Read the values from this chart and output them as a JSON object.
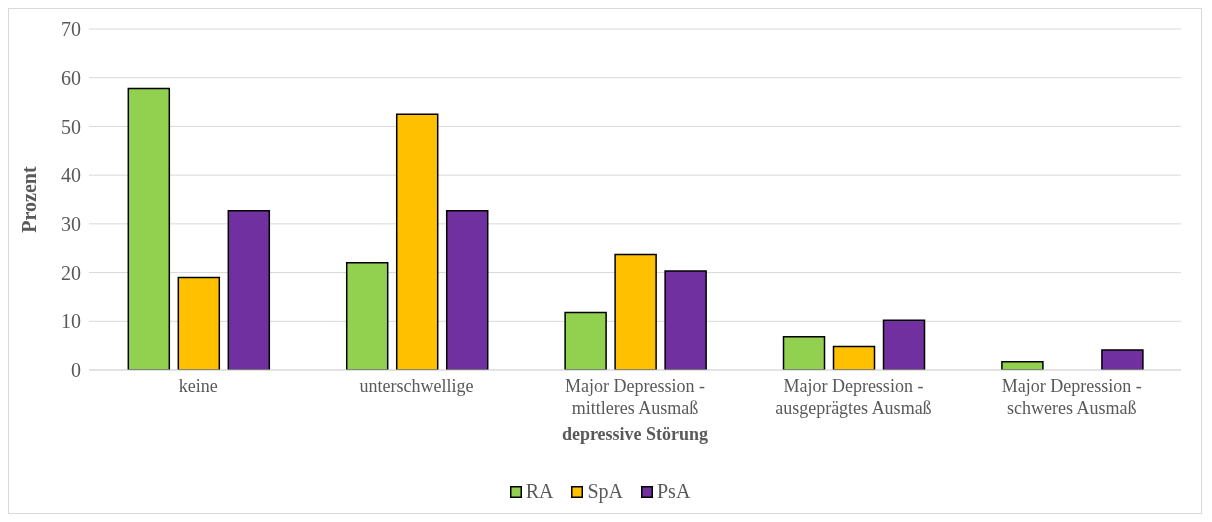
{
  "chart_data": {
    "type": "bar",
    "xlabel": "depressive Störung",
    "ylabel": "Prozent",
    "categories": [
      "keine",
      "unterschwellige",
      "Major Depression - mittleres Ausmaß",
      "Major Depression - ausgeprägtes Ausmaß",
      "Major Depression - schweres Ausmaß"
    ],
    "series": [
      {
        "name": "RA",
        "color": "#92d050",
        "values": [
          57.8,
          22.0,
          11.8,
          6.8,
          1.7
        ]
      },
      {
        "name": "SpA",
        "color": "#ffc000",
        "values": [
          19.0,
          52.5,
          23.7,
          4.8,
          0
        ]
      },
      {
        "name": "PsA",
        "color": "#7030a0",
        "values": [
          32.7,
          32.7,
          20.3,
          10.2,
          4.1
        ]
      }
    ],
    "ylim": [
      0,
      70
    ],
    "yticks": [
      0,
      10,
      20,
      30,
      40,
      50,
      60,
      70
    ],
    "grid": "y",
    "legend": "bottom"
  }
}
